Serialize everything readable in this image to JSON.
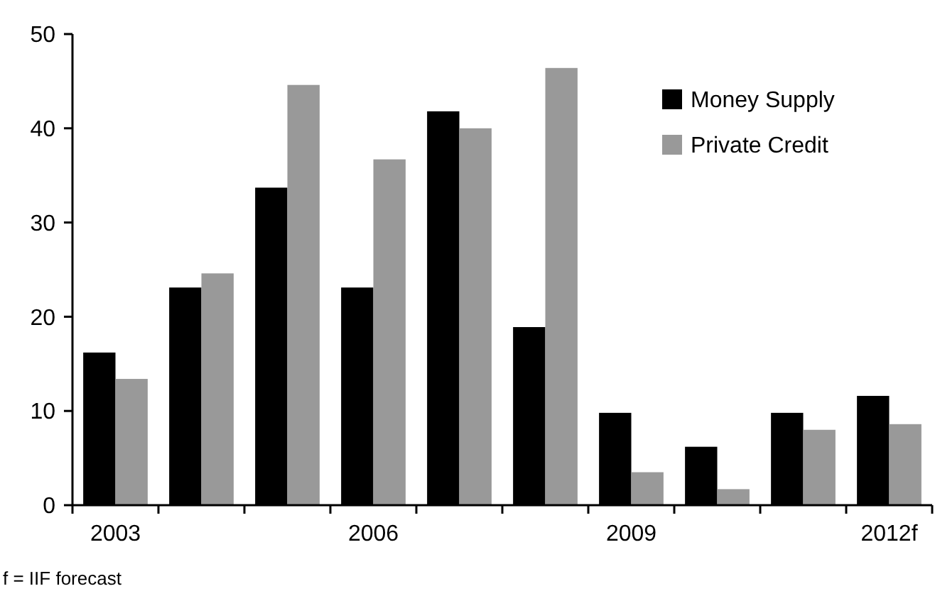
{
  "chart_data": {
    "type": "bar",
    "categories": [
      "2003",
      null,
      null,
      "2006",
      null,
      null,
      "2009",
      null,
      null,
      "2012f"
    ],
    "series": [
      {
        "name": "Money Supply",
        "color": "#000000",
        "values": [
          16.2,
          23.1,
          33.7,
          23.1,
          41.8,
          18.9,
          9.8,
          6.2,
          9.8,
          11.6
        ]
      },
      {
        "name": "Private Credit",
        "color": "#999999",
        "values": [
          13.4,
          24.6,
          44.6,
          36.7,
          40.0,
          46.4,
          3.5,
          1.7,
          8.0,
          8.6
        ]
      }
    ],
    "ylim": [
      0,
      50
    ],
    "yticks": [
      0,
      10,
      20,
      30,
      40,
      50
    ],
    "legend": "top right",
    "grid": false,
    "annotations": [
      "f = IIF forecast"
    ]
  }
}
